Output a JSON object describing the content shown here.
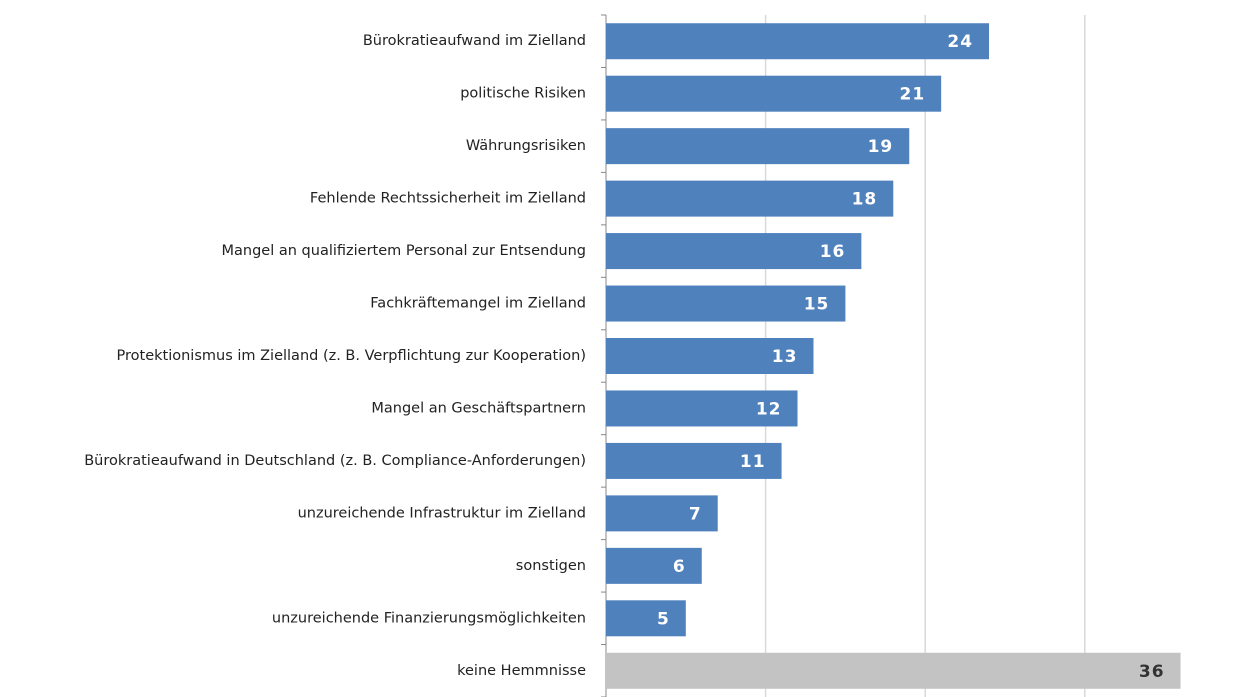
{
  "chart_data": {
    "type": "hbar",
    "categories": [
      "Bürokratieaufwand im Zielland",
      "politische Risiken",
      "Währungsrisiken",
      "Fehlende Rechtssicherheit im Zielland",
      "Mangel an qualifiziertem Personal zur Entsendung",
      "Fachkräftemangel im Zielland",
      "Protektionismus im Zielland (z. B. Verpflichtung zur Kooperation)",
      "Mangel an Geschäftspartnern",
      "Bürokratieaufwand in Deutschland (z. B. Compliance-Anforderungen)",
      "unzureichende Infrastruktur im Zielland",
      "sonstigen",
      "unzureichende Finanzierungsmöglichkeiten",
      "keine Hemmnisse"
    ],
    "values": [
      24,
      21,
      19,
      18,
      16,
      15,
      13,
      12,
      11,
      7,
      6,
      5,
      36
    ],
    "colors": [
      "#4f81bd",
      "#4f81bd",
      "#4f81bd",
      "#4f81bd",
      "#4f81bd",
      "#4f81bd",
      "#4f81bd",
      "#4f81bd",
      "#4f81bd",
      "#4f81bd",
      "#4f81bd",
      "#4f81bd",
      "#c3c3c3"
    ],
    "label_colors": [
      "#ffffff",
      "#ffffff",
      "#ffffff",
      "#ffffff",
      "#ffffff",
      "#ffffff",
      "#ffffff",
      "#ffffff",
      "#ffffff",
      "#ffffff",
      "#ffffff",
      "#ffffff",
      "#333333"
    ],
    "xlim": [
      0,
      38
    ],
    "xticks": [
      0,
      10,
      20,
      30
    ],
    "grid": true
  }
}
